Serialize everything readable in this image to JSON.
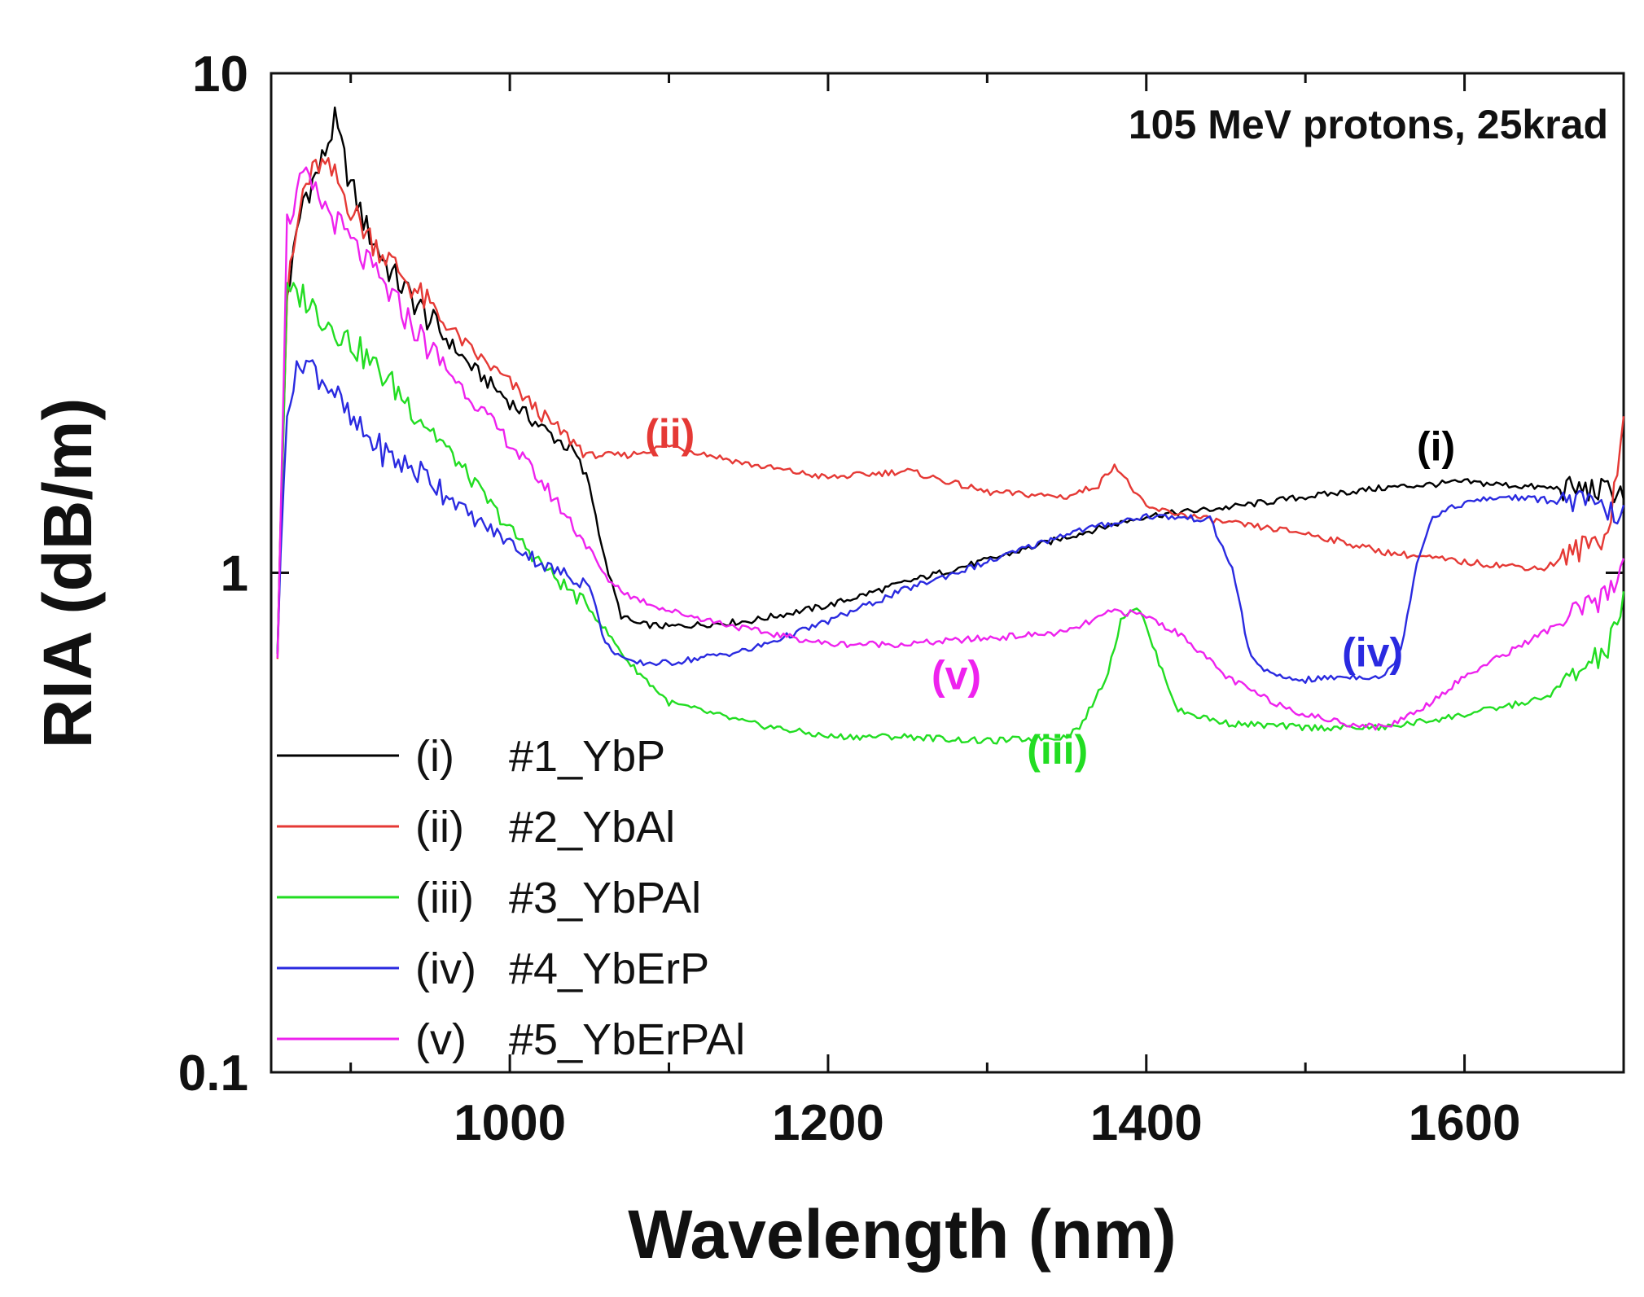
{
  "chart_data": {
    "type": "line",
    "title": "",
    "annotation": "105 MeV protons, 25krad",
    "xlabel": "Wavelength (nm)",
    "ylabel": "RIA (dB/m)",
    "xlim": [
      850,
      1700
    ],
    "ylim": [
      0.1,
      10
    ],
    "yscale": "log",
    "x_ticks": [
      "1000",
      "1200",
      "1400",
      "1600"
    ],
    "y_ticks": [
      "0.1",
      "1",
      "10"
    ],
    "legend_position": "bottom-left",
    "series": [
      {
        "name": "#1_YbP",
        "roman": "(i)",
        "color": "#000000",
        "curve_label": "(i)",
        "curve_label_at": [
          1570,
          1.68
        ],
        "x": [
          854,
          860,
          870,
          880,
          890,
          900,
          910,
          925,
          950,
          975,
          1000,
          1025,
          1040,
          1050,
          1060,
          1070,
          1080,
          1100,
          1150,
          1200,
          1250,
          1300,
          1350,
          1400,
          1450,
          1500,
          1550,
          1600,
          1650,
          1690,
          1700
        ],
        "y": [
          0.72,
          3.6,
          5.6,
          6.4,
          8.0,
          6.0,
          4.9,
          4.0,
          3.2,
          2.6,
          2.2,
          1.9,
          1.75,
          1.5,
          1.05,
          0.82,
          0.79,
          0.78,
          0.8,
          0.86,
          0.96,
          1.06,
          1.18,
          1.3,
          1.35,
          1.42,
          1.48,
          1.52,
          1.48,
          1.46,
          1.46
        ]
      },
      {
        "name": "#2_YbAl",
        "roman": "(ii)",
        "color": "#e53935",
        "curve_label": "(ii)",
        "curve_label_at": [
          1085,
          1.78
        ],
        "x": [
          854,
          860,
          870,
          880,
          890,
          900,
          910,
          925,
          950,
          975,
          1000,
          1025,
          1050,
          1075,
          1100,
          1150,
          1200,
          1250,
          1300,
          1350,
          1370,
          1380,
          1400,
          1450,
          1500,
          1550,
          1600,
          1650,
          1690,
          1700
        ],
        "y": [
          0.72,
          3.6,
          5.8,
          6.6,
          6.2,
          5.4,
          4.8,
          4.2,
          3.4,
          2.8,
          2.4,
          2.0,
          1.72,
          1.72,
          1.8,
          1.65,
          1.55,
          1.6,
          1.45,
          1.42,
          1.5,
          1.65,
          1.35,
          1.26,
          1.2,
          1.1,
          1.05,
          1.02,
          1.2,
          2.0
        ]
      },
      {
        "name": "#3_YbPAl",
        "roman": "(iii)",
        "color": "#22dd22",
        "curve_label": "(iii)",
        "curve_label_at": [
          1325,
          0.415
        ],
        "x": [
          854,
          860,
          870,
          880,
          900,
          925,
          950,
          975,
          1000,
          1025,
          1050,
          1075,
          1100,
          1150,
          1200,
          1250,
          1300,
          1350,
          1360,
          1375,
          1385,
          1395,
          1405,
          1420,
          1450,
          1500,
          1550,
          1600,
          1650,
          1690,
          1700
        ],
        "y": [
          0.72,
          3.6,
          3.6,
          3.3,
          2.9,
          2.4,
          1.95,
          1.55,
          1.22,
          1.0,
          0.85,
          0.66,
          0.55,
          0.5,
          0.47,
          0.47,
          0.46,
          0.47,
          0.5,
          0.62,
          0.82,
          0.86,
          0.7,
          0.53,
          0.5,
          0.49,
          0.49,
          0.52,
          0.56,
          0.7,
          0.88
        ]
      },
      {
        "name": "#4_YbErP",
        "roman": "(iv)",
        "color": "#2a2ae0",
        "curve_label": "(iv)",
        "curve_label_at": [
          1523,
          0.65
        ],
        "x": [
          854,
          860,
          870,
          880,
          890,
          900,
          925,
          950,
          975,
          1000,
          1025,
          1050,
          1060,
          1075,
          1100,
          1150,
          1200,
          1250,
          1300,
          1350,
          1400,
          1440,
          1455,
          1465,
          1480,
          1500,
          1525,
          1550,
          1560,
          1570,
          1580,
          1600,
          1625,
          1650,
          1675,
          1700
        ],
        "y": [
          0.72,
          2.2,
          2.7,
          2.5,
          2.3,
          2.0,
          1.7,
          1.55,
          1.3,
          1.15,
          1.02,
          0.95,
          0.72,
          0.66,
          0.66,
          0.7,
          0.8,
          0.93,
          1.05,
          1.2,
          1.3,
          1.28,
          1.0,
          0.68,
          0.62,
          0.61,
          0.62,
          0.62,
          0.7,
          1.05,
          1.3,
          1.38,
          1.42,
          1.4,
          1.38,
          1.3
        ]
      },
      {
        "name": "#5_YbErPAl",
        "roman": "(v)",
        "color": "#ee22ee",
        "curve_label": "(v)",
        "curve_label_at": [
          1265,
          0.585
        ],
        "x": [
          854,
          860,
          870,
          880,
          890,
          900,
          925,
          950,
          975,
          1000,
          1025,
          1050,
          1060,
          1075,
          1100,
          1150,
          1200,
          1250,
          1300,
          1350,
          1380,
          1400,
          1425,
          1450,
          1475,
          1500,
          1525,
          1550,
          1575,
          1600,
          1650,
          1690,
          1700
        ],
        "y": [
          0.72,
          5.0,
          6.2,
          5.6,
          5.1,
          4.6,
          3.6,
          2.8,
          2.25,
          1.82,
          1.45,
          1.12,
          0.98,
          0.9,
          0.84,
          0.77,
          0.72,
          0.72,
          0.74,
          0.76,
          0.84,
          0.82,
          0.74,
          0.62,
          0.56,
          0.52,
          0.5,
          0.49,
          0.54,
          0.62,
          0.76,
          0.9,
          1.05
        ]
      }
    ]
  }
}
